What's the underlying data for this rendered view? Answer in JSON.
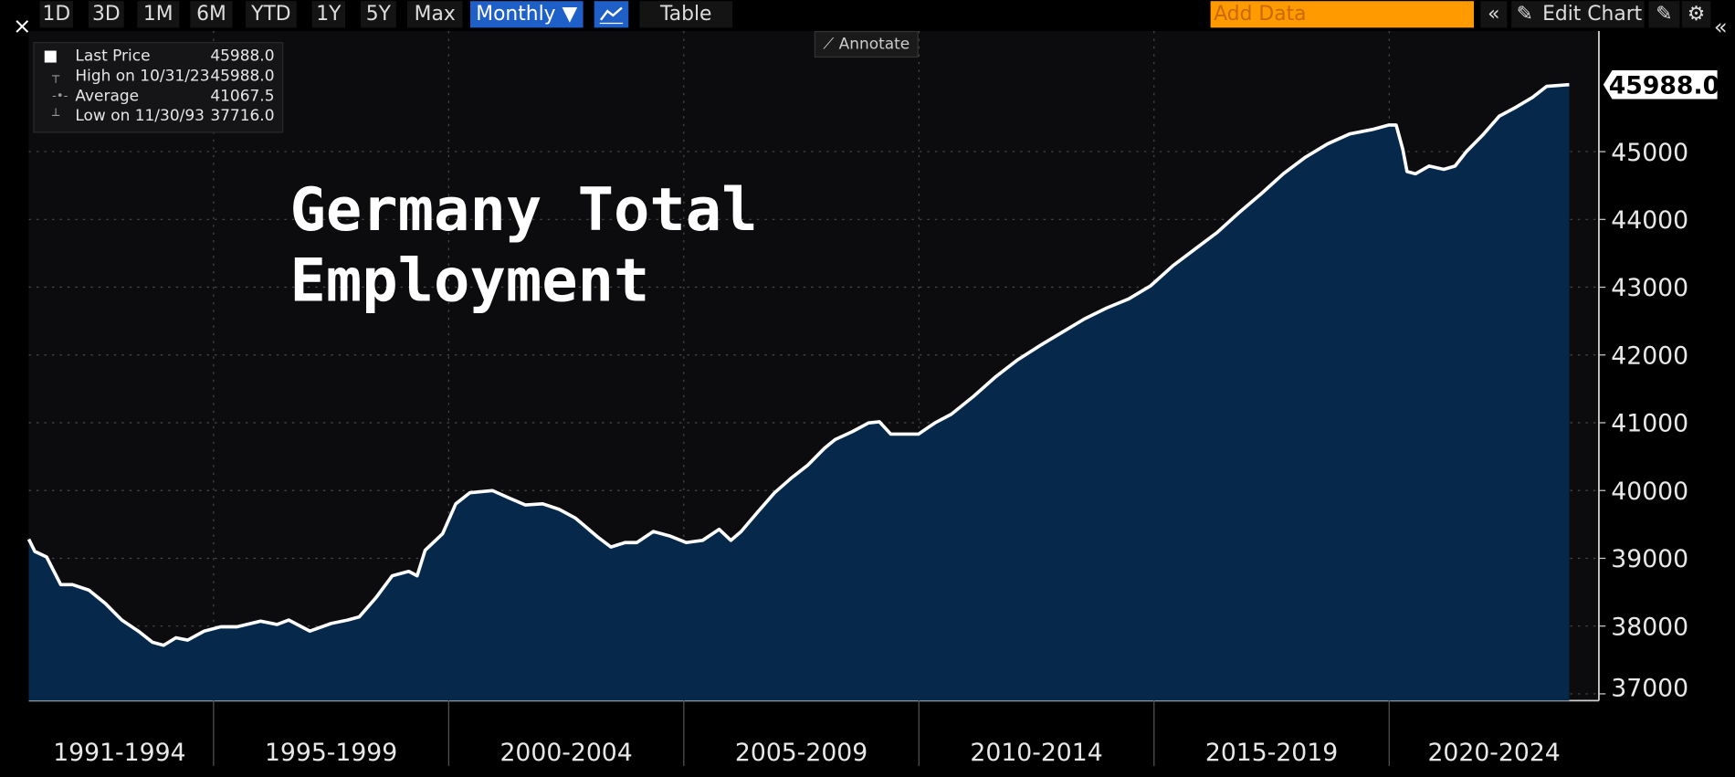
{
  "toolbar": {
    "ranges": [
      "1D",
      "3D",
      "1M",
      "6M",
      "YTD",
      "1Y",
      "5Y",
      "Max"
    ],
    "interval": "Monthly ▼",
    "table": "Table",
    "add_data": "Add Data",
    "edit_chart": "Edit Chart",
    "annotate": "Annotate"
  },
  "chart_data": {
    "type": "area",
    "title": "Germany Total Employment",
    "stats": [
      {
        "name": "Last Price",
        "value": "45988.0"
      },
      {
        "name": "High on 10/31/23",
        "value": "45988.0"
      },
      {
        "name": "Average",
        "value": "41067.5"
      },
      {
        "name": "Low on 11/30/93",
        "value": "37716.0"
      }
    ],
    "x": [
      1991.07,
      1991.2,
      1991.45,
      1991.75,
      1992.0,
      1992.35,
      1992.7,
      1993.05,
      1993.4,
      1993.7,
      1993.94,
      1994.2,
      1994.45,
      1994.8,
      1995.15,
      1995.5,
      1996.0,
      1996.35,
      1996.6,
      1997.05,
      1997.5,
      1997.85,
      1998.1,
      1998.45,
      1998.8,
      1999.15,
      1999.33,
      1999.5,
      1999.87,
      2000.15,
      2000.45,
      2000.93,
      2001.3,
      2001.63,
      2002.0,
      2002.35,
      2002.7,
      2003.17,
      2003.45,
      2003.75,
      2004.0,
      2004.35,
      2004.7,
      2005.05,
      2005.4,
      2005.75,
      2006.0,
      2006.22,
      2006.58,
      2006.93,
      2007.28,
      2007.64,
      2007.99,
      2008.22,
      2008.58,
      2008.93,
      2009.16,
      2009.4,
      2009.64,
      2009.99,
      2010.34,
      2010.69,
      2011.16,
      2011.64,
      2012.1,
      2012.58,
      2013.05,
      2013.52,
      2014.0,
      2014.46,
      2014.93,
      2015.4,
      2015.87,
      2016.34,
      2016.81,
      2017.28,
      2017.75,
      2018.22,
      2018.69,
      2019.16,
      2019.64,
      2019.99,
      2020.15,
      2020.29,
      2020.38,
      2020.56,
      2020.85,
      2021.16,
      2021.4,
      2021.64,
      2021.99,
      2022.34,
      2022.69,
      2023.05,
      2023.35,
      2023.83
    ],
    "values": [
      39281,
      39101,
      39020,
      38611,
      38611,
      38530,
      38334,
      38089,
      37925,
      37762,
      37716,
      37827,
      37794,
      37925,
      37990,
      37990,
      38072,
      38023,
      38089,
      37925,
      38039,
      38089,
      38137,
      38415,
      38742,
      38807,
      38742,
      39117,
      39363,
      39804,
      39967,
      40000,
      39886,
      39788,
      39804,
      39722,
      39591,
      39314,
      39167,
      39232,
      39232,
      39395,
      39330,
      39232,
      39265,
      39428,
      39265,
      39395,
      39689,
      39967,
      40180,
      40376,
      40621,
      40752,
      40866,
      40997,
      41013,
      40833,
      40833,
      40833,
      40997,
      41127,
      41389,
      41683,
      41928,
      42140,
      42337,
      42533,
      42696,
      42827,
      43023,
      43317,
      43562,
      43807,
      44101,
      44379,
      44673,
      44918,
      45114,
      45261,
      45327,
      45392,
      45392,
      45033,
      44706,
      44673,
      44788,
      44739,
      44788,
      45000,
      45245,
      45523,
      45654,
      45801,
      45964,
      45988
    ],
    "color": "#ffffff",
    "fill_color": "#06294b",
    "last_label": {
      "value": 45988,
      "label": "45988.0"
    },
    "xlim": [
      1991,
      2024.46
    ],
    "xticks": [
      1995,
      2000,
      2005,
      2010,
      2015,
      2020
    ],
    "periods": [
      "1991-1994",
      "1995-1999",
      "2000-2004",
      "2005-2009",
      "2010-2014",
      "2015-2019",
      "2020-2024"
    ],
    "ylim": [
      36900,
      46780
    ],
    "yticks": [
      37000,
      38000,
      39000,
      40000,
      41000,
      42000,
      43000,
      44000,
      45000
    ],
    "grid": true
  }
}
